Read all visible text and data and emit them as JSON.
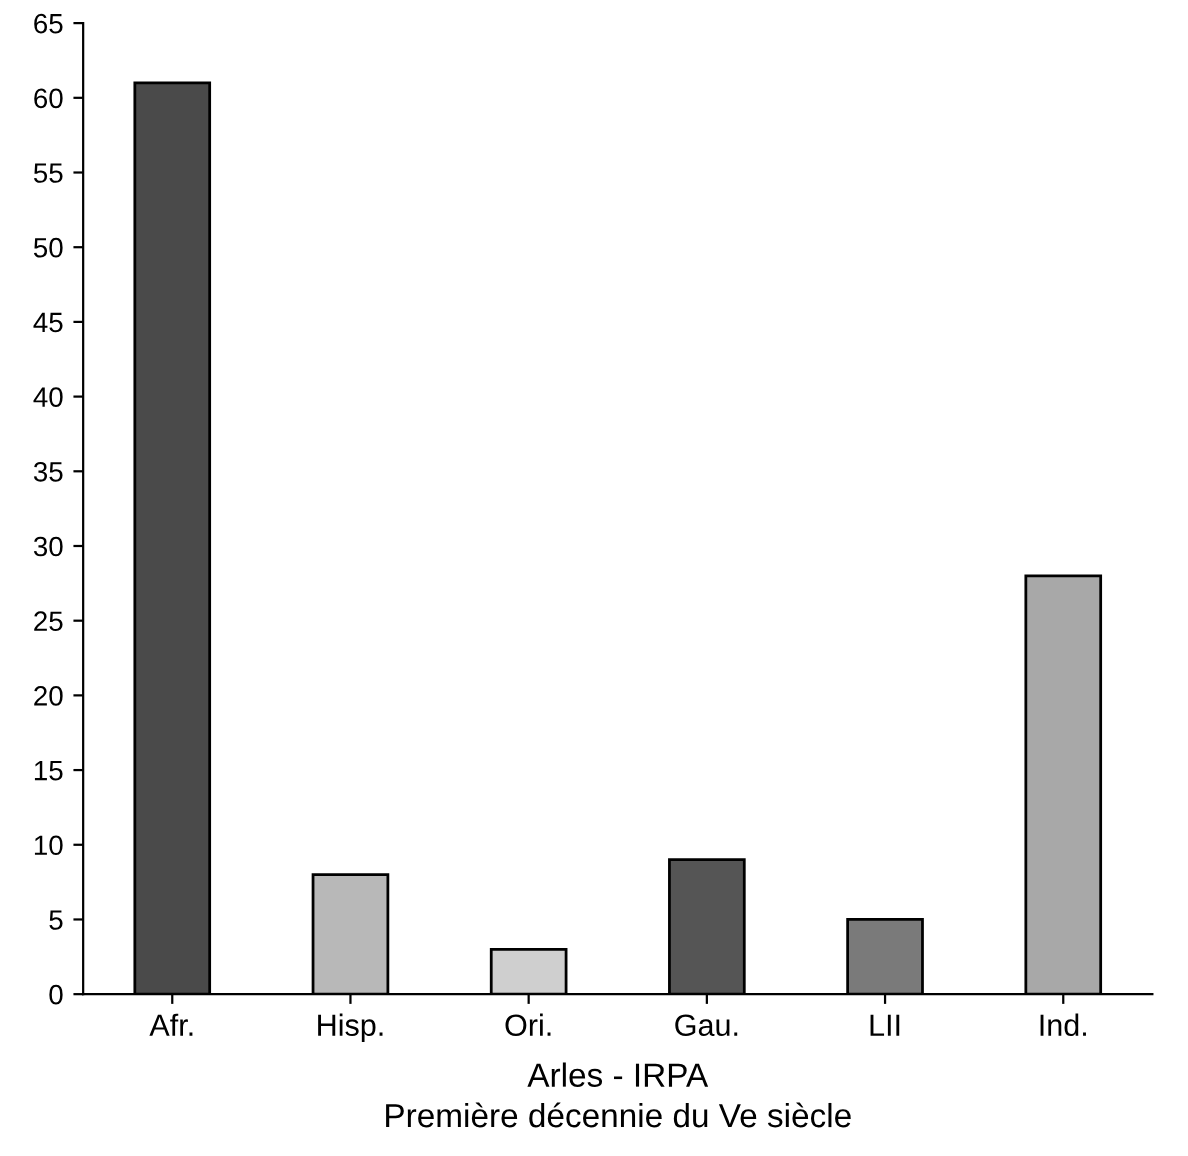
{
  "chart_data": {
    "type": "bar",
    "title": "Arles - IRPA",
    "subtitle": "Première décennie du Ve siècle",
    "categories": [
      "Afr.",
      "Hisp.",
      "Ori.",
      "Gau.",
      "LII",
      "Ind."
    ],
    "values": [
      61,
      8,
      3,
      9,
      5,
      28
    ],
    "colors": [
      "#4a4a4a",
      "#b8b8b8",
      "#cfcfcf",
      "#555555",
      "#7a7a7a",
      "#a8a8a8"
    ],
    "ylim": [
      0,
      65
    ],
    "yticks": [
      0,
      5,
      10,
      15,
      20,
      25,
      30,
      35,
      40,
      45,
      50,
      55,
      60,
      65
    ],
    "grid": false
  }
}
